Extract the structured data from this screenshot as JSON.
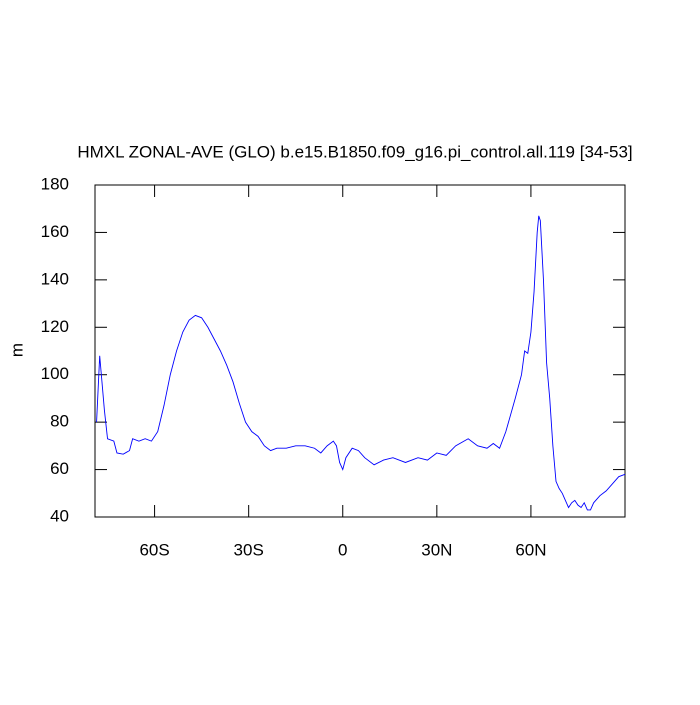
{
  "chart_data": {
    "type": "line",
    "title": "HMXL ZONAL-AVE (GLO) b.e15.B1850.f09_g16.pi_control.all.119 [34-53]",
    "ylabel": "m",
    "x": [
      -78.5,
      -77.5,
      -76,
      -75,
      -73,
      -72,
      -70,
      -68,
      -67,
      -65,
      -63,
      -61,
      -59,
      -57,
      -55,
      -53,
      -51,
      -49,
      -47,
      -45,
      -43,
      -41,
      -39,
      -37,
      -35,
      -33,
      -31,
      -29,
      -27,
      -25,
      -23,
      -21,
      -18,
      -15,
      -12,
      -9,
      -7,
      -5,
      -3,
      -2,
      -1,
      0,
      1,
      3,
      5,
      7,
      10,
      13,
      16,
      20,
      24,
      27,
      30,
      33,
      36,
      40,
      43,
      46,
      48,
      50,
      52,
      55,
      57,
      58,
      59,
      60,
      61,
      62,
      62.5,
      63,
      64,
      65,
      66,
      67,
      68,
      69,
      70,
      71,
      72,
      73,
      74,
      75,
      76,
      77,
      78,
      79,
      80,
      82,
      84,
      86,
      88,
      90
    ],
    "values": [
      80,
      108,
      85,
      73,
      72,
      67,
      66.5,
      68,
      73,
      72,
      73,
      72,
      76,
      87,
      100,
      110,
      118,
      123,
      125,
      124,
      120,
      115,
      110,
      104,
      97,
      88,
      80,
      76,
      74,
      70,
      68,
      69,
      69,
      70,
      70,
      69,
      67,
      70,
      72,
      70,
      63,
      60,
      65,
      69,
      68,
      65,
      62,
      64,
      65,
      63,
      65,
      64,
      67,
      66,
      70,
      73,
      70,
      69,
      71,
      69,
      76,
      90,
      100,
      110,
      109,
      118,
      135,
      160,
      167,
      165,
      140,
      105,
      90,
      70,
      55,
      52,
      50,
      47,
      44,
      46,
      47,
      45,
      44,
      46,
      43,
      43,
      46,
      49,
      51,
      54,
      57,
      58
    ],
    "color": "#0000ff",
    "xlim": [
      -79,
      90
    ],
    "ylim": [
      40,
      180
    ],
    "xticks": [
      {
        "value": -60,
        "label": "60S"
      },
      {
        "value": -30,
        "label": "30S"
      },
      0,
      {
        "value": 30,
        "label": "30N"
      },
      {
        "value": 60,
        "label": "60N"
      }
    ],
    "yticks": [
      40,
      60,
      80,
      100,
      120,
      140,
      160,
      180
    ]
  }
}
